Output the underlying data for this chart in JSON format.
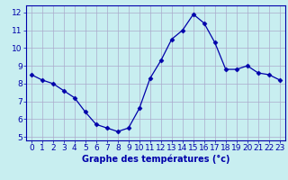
{
  "x": [
    0,
    1,
    2,
    3,
    4,
    5,
    6,
    7,
    8,
    9,
    10,
    11,
    12,
    13,
    14,
    15,
    16,
    17,
    18,
    19,
    20,
    21,
    22,
    23
  ],
  "y": [
    8.5,
    8.2,
    8.0,
    7.6,
    7.2,
    6.4,
    5.7,
    5.5,
    5.3,
    5.5,
    6.6,
    8.3,
    9.3,
    10.5,
    11.0,
    11.9,
    11.4,
    10.3,
    8.8,
    8.8,
    9.0,
    8.6,
    8.5,
    8.2
  ],
  "line_color": "#0000aa",
  "marker": "D",
  "marker_size": 2.5,
  "bg_color": "#c8eef0",
  "grid_color": "#aaaacc",
  "xlabel": "Graphe des températures (°c)",
  "xlabel_fontsize": 7,
  "tick_fontsize": 6.5,
  "ylim": [
    4.8,
    12.4
  ],
  "xlim": [
    -0.5,
    23.5
  ],
  "yticks": [
    5,
    6,
    7,
    8,
    9,
    10,
    11,
    12
  ],
  "xticks": [
    0,
    1,
    2,
    3,
    4,
    5,
    6,
    7,
    8,
    9,
    10,
    11,
    12,
    13,
    14,
    15,
    16,
    17,
    18,
    19,
    20,
    21,
    22,
    23
  ]
}
